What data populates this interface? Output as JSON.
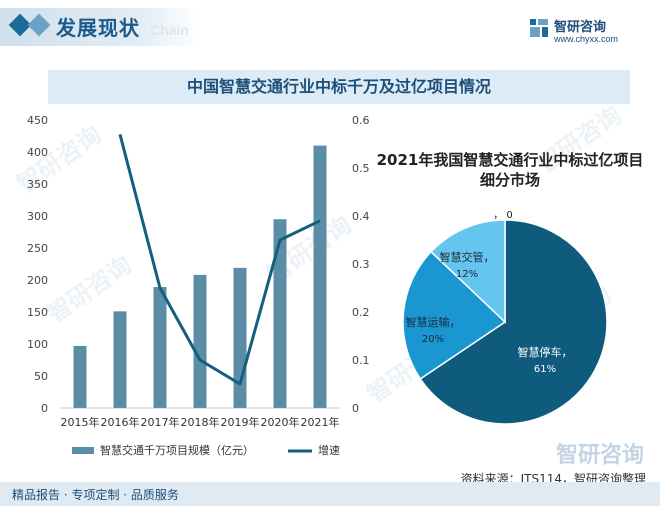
{
  "header": {
    "title": "发展现状",
    "ghost": "Chain"
  },
  "brand": {
    "name": "智研咨询",
    "url": "www.chyxx.com"
  },
  "banner": {
    "title": "中国智慧交通行业中标千万及过亿项目情况"
  },
  "watermark": "智研咨询",
  "colors": {
    "bar": "#5b8ea6",
    "line": "#135f7e",
    "pie": [
      "#0f5b7e",
      "#1a97d0",
      "#64c5ef",
      "#0a3a55"
    ]
  },
  "chart_data": [
    {
      "type": "bar",
      "categories": [
        "2015年",
        "2016年",
        "2017年",
        "2018年",
        "2019年",
        "2020年",
        "2021年"
      ],
      "series": [
        {
          "name": "智慧交通千万项目规模（亿元）",
          "type": "bar",
          "axis": "left",
          "values": [
            97,
            151,
            189,
            208,
            219,
            295,
            410
          ]
        },
        {
          "name": "增速",
          "type": "line",
          "axis": "right",
          "values": [
            null,
            0.57,
            0.25,
            0.1,
            0.05,
            0.35,
            0.39
          ]
        }
      ],
      "y_left": {
        "min": 0,
        "max": 450,
        "ticks": [
          0,
          50,
          100,
          150,
          200,
          250,
          300,
          350,
          400,
          450
        ]
      },
      "y_right": {
        "min": 0,
        "max": 0.6,
        "ticks": [
          "0",
          "0.1",
          "0.2",
          "0.3",
          "0.4",
          "0.5",
          "0.6"
        ]
      },
      "legend": "bottom"
    },
    {
      "type": "pie",
      "title": "2021年我国智慧交通行业中标过亿项目细分市场",
      "labels": [
        "智慧停车",
        "智慧运输",
        "智慧交管",
        ""
      ],
      "values": [
        61,
        20,
        12,
        0
      ],
      "display_values": [
        "61%",
        "20%",
        "12%",
        "0"
      ],
      "label_sep": "，"
    }
  ],
  "source": "资料来源：ITS114，智研咨询整理",
  "footer": {
    "text": "精品报告 · 专项定制 · 品质服务",
    "brand": "智研咨询"
  }
}
